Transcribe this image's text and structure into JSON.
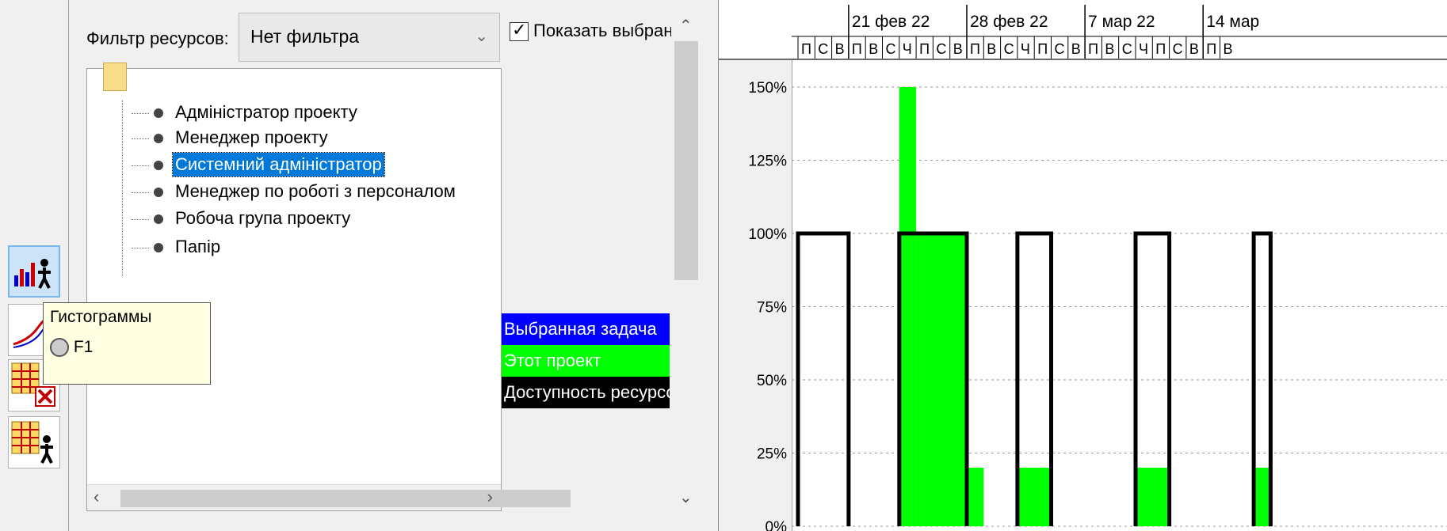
{
  "resource_panel": {
    "filter_label": "Фильтр ресурсов:",
    "filter_value": "Нет фильтра",
    "show_selected_label": "Показать выбранн",
    "show_selected_checked": true,
    "resources": [
      {
        "label": "Адміністратор проекту",
        "selected": false
      },
      {
        "label": "Менеджер проекту",
        "selected": false
      },
      {
        "label": "Системний адміністратор",
        "selected": true
      },
      {
        "label": "Менеджер по роботі з персоналом",
        "selected": false
      },
      {
        "label": "Робоча група проекту",
        "selected": false
      },
      {
        "label": "Папір",
        "selected": false
      }
    ],
    "legend": [
      {
        "label": "Выбранная задача",
        "color": "#0000ff",
        "text_color": "#ffffff"
      },
      {
        "label": "Этот проект",
        "color": "#00ff00",
        "text_color": "#ffffff"
      },
      {
        "label": "Доступность ресурсов",
        "color": "#000000",
        "text_color": "#ffffff"
      }
    ]
  },
  "toolbar": {
    "buttons": [
      {
        "name": "histogram-button",
        "icon": "histogram-icon",
        "active": true
      },
      {
        "name": "graph-button",
        "icon": "graph-icon",
        "active": false
      },
      {
        "name": "remove-table-button",
        "icon": "table-remove-icon",
        "active": false
      },
      {
        "name": "resource-table-button",
        "icon": "table-resource-icon",
        "active": false
      }
    ]
  },
  "tooltip": {
    "title": "Гистограммы",
    "shortcut": "F1"
  },
  "timescale": {
    "weeks": [
      "21 фев 22",
      "28 фев 22",
      "7 мар 22",
      "14 мар"
    ],
    "day_labels": [
      "П",
      "С",
      "В",
      "П",
      "В",
      "С",
      "Ч",
      "П",
      "С",
      "В",
      "П",
      "В",
      "С",
      "Ч",
      "П",
      "С",
      "В",
      "П",
      "В",
      "С",
      "Ч",
      "П",
      "С",
      "В",
      "П",
      "В"
    ]
  },
  "chart_data": {
    "type": "bar",
    "y_ticks": [
      "150%",
      "125%",
      "100%",
      "75%",
      "50%",
      "25%",
      "0%"
    ],
    "ylim": [
      0,
      150
    ],
    "grid": true,
    "this_project_color": "#00ff00",
    "availability_color": "#000000",
    "this_project": [
      {
        "start_day": 6,
        "end_day": 7,
        "value": 150
      },
      {
        "start_day": 7,
        "end_day": 10,
        "value": 100
      },
      {
        "start_day": 10,
        "end_day": 11,
        "value": 20
      },
      {
        "start_day": 13,
        "end_day": 15,
        "value": 20
      },
      {
        "start_day": 20,
        "end_day": 22,
        "value": 20
      },
      {
        "start_day": 27,
        "end_day": 28,
        "value": 20
      }
    ],
    "availability": [
      {
        "start_day": 0,
        "end_day": 3,
        "value": 100
      },
      {
        "start_day": 6,
        "end_day": 10,
        "value": 100
      },
      {
        "start_day": 13,
        "end_day": 15,
        "value": 100
      },
      {
        "start_day": 20,
        "end_day": 22,
        "value": 100
      },
      {
        "start_day": 27,
        "end_day": 28,
        "value": 100
      }
    ]
  }
}
